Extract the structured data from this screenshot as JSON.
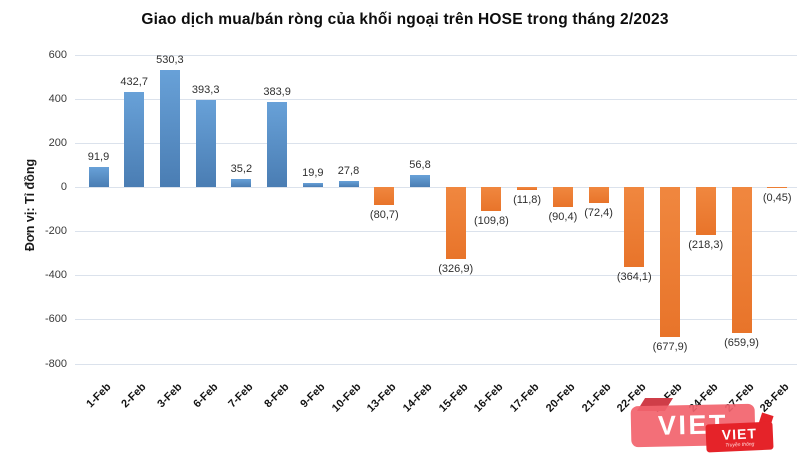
{
  "chart_data": {
    "type": "bar",
    "title": "Giao dịch mua/bán ròng của khối ngoại trên HOSE trong tháng 2/2023",
    "ylabel": "Đơn vị: Tỉ đồng",
    "xlabel": "",
    "categories": [
      "1-Feb",
      "2-Feb",
      "3-Feb",
      "6-Feb",
      "7-Feb",
      "8-Feb",
      "9-Feb",
      "10-Feb",
      "13-Feb",
      "14-Feb",
      "15-Feb",
      "16-Feb",
      "17-Feb",
      "20-Feb",
      "21-Feb",
      "22-Feb",
      "23-Feb",
      "24-Feb",
      "27-Feb",
      "28-Feb"
    ],
    "values": [
      91.9,
      432.7,
      530.3,
      393.3,
      35.2,
      383.9,
      19.9,
      27.8,
      -80.7,
      56.8,
      -326.9,
      -109.8,
      -11.8,
      -90.4,
      -72.4,
      -364.1,
      -677.9,
      -218.3,
      -659.9,
      -0.45
    ],
    "value_labels": [
      "91,9",
      "432,7",
      "530,3",
      "393,3",
      "35,2",
      "383,9",
      "19,9",
      "27,8",
      "(80,7)",
      "56,8",
      "(326,9)",
      "(109,8)",
      "(11,8)",
      "(90,4)",
      "(72,4)",
      "(364,1)",
      "(677,9)",
      "(218,3)",
      "(659,9)",
      "(0,45)"
    ],
    "yticks": [
      600,
      400,
      200,
      0,
      -200,
      -400,
      -600,
      -800
    ],
    "ylim": [
      -800,
      600
    ],
    "grid": true,
    "legend_position": "none",
    "positive_color": "#5b94cb",
    "negative_color": "#ed7d31",
    "gridline_color": "#dbe2ec"
  },
  "watermark": {
    "primary_label": "VIET",
    "primary_color": "#f2636d",
    "primary_fold_color": "#cf3d48",
    "secondary_label": "VIET",
    "secondary_tagline": "Truyền thông",
    "secondary_color": "#e52329"
  }
}
